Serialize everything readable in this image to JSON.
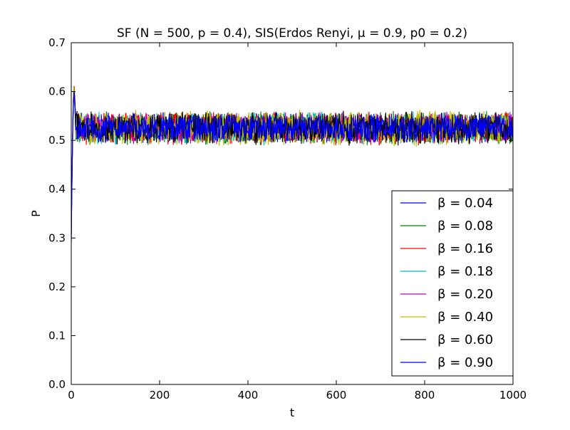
{
  "chart_data": {
    "type": "line",
    "title": "SF (N = 500, p = 0.4), SIS(Erdos Renyi, μ = 0.9, p0 = 0.2)",
    "xlabel": "t",
    "ylabel": "P",
    "xlim": [
      0,
      1000
    ],
    "ylim": [
      0.0,
      0.7
    ],
    "xticks": [
      0,
      200,
      400,
      600,
      800,
      1000
    ],
    "xtick_labels": [
      "0",
      "200",
      "400",
      "600",
      "800",
      "1000"
    ],
    "yticks": [
      0.0,
      0.1,
      0.2,
      0.3,
      0.4,
      0.5,
      0.6,
      0.7
    ],
    "ytick_labels": [
      "0.0",
      "0.1",
      "0.2",
      "0.3",
      "0.4",
      "0.5",
      "0.6",
      "0.7"
    ],
    "grid": false,
    "legend_position": "lower-right",
    "steady_state_mean": 0.525,
    "initial_value": 0.3,
    "series": [
      {
        "name": "β = 0.04",
        "color": "#0000ff",
        "amplitude": 0.025
      },
      {
        "name": "β = 0.08",
        "color": "#008000",
        "amplitude": 0.028
      },
      {
        "name": "β = 0.16",
        "color": "#ff0000",
        "amplitude": 0.028
      },
      {
        "name": "β = 0.18",
        "color": "#00bfbf",
        "amplitude": 0.028
      },
      {
        "name": "β = 0.20",
        "color": "#bf00bf",
        "amplitude": 0.026
      },
      {
        "name": "β = 0.40",
        "color": "#bfbf00",
        "amplitude": 0.03
      },
      {
        "name": "β = 0.60",
        "color": "#000000",
        "amplitude": 0.028
      },
      {
        "name": "β = 0.90",
        "color": "#0000ff",
        "amplitude": 0.024
      }
    ]
  }
}
